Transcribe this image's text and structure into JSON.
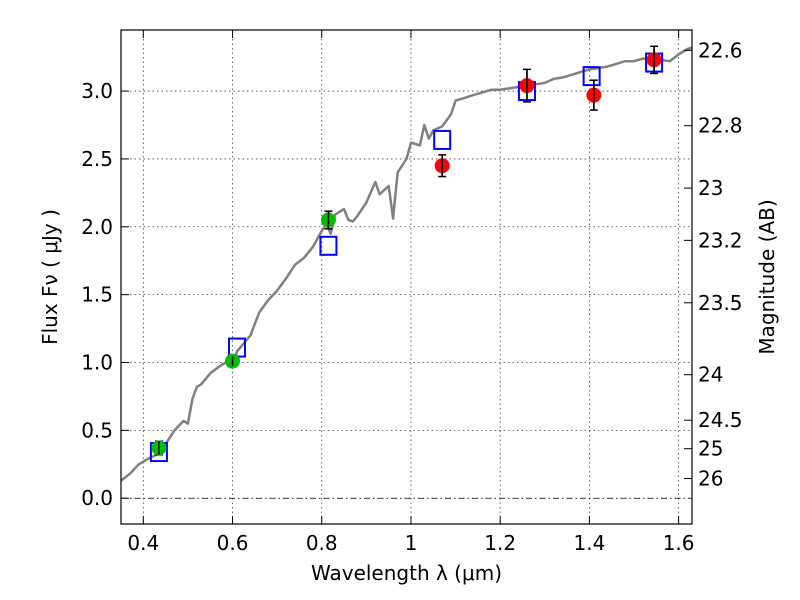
{
  "chart_data": {
    "type": "scatter",
    "xlabel": "Wavelength  λ (μm)",
    "ylabel": "Flux  Fν ( μJy )",
    "ylabel_right": "Magnitude (AB)",
    "xlim": [
      0.35,
      1.63
    ],
    "ylim": [
      -0.19,
      3.45
    ],
    "grid": true,
    "x_ticks": [
      0.4,
      0.6,
      0.8,
      1.0,
      1.2,
      1.4,
      1.6
    ],
    "x_tick_labels": [
      "0.4",
      "0.6",
      "0.8",
      "1",
      "1.2",
      "1.4",
      "1.6"
    ],
    "y_ticks": [
      0.0,
      0.5,
      1.0,
      1.5,
      2.0,
      2.5,
      3.0
    ],
    "y_tick_labels": [
      "0.0",
      "0.5",
      "1.0",
      "1.5",
      "2.0",
      "2.5",
      "3.0"
    ],
    "right_ticks": [
      {
        "label": "22.6",
        "flux": 3.3
      },
      {
        "label": "22.8",
        "flux": 2.745
      },
      {
        "label": "23",
        "flux": 2.285
      },
      {
        "label": "23.2",
        "flux": 1.9
      },
      {
        "label": "23.5",
        "flux": 1.44
      },
      {
        "label": "24",
        "flux": 0.91
      },
      {
        "label": "24.5",
        "flux": 0.575
      },
      {
        "label": "25",
        "flux": 0.365
      },
      {
        "label": "26",
        "flux": 0.145
      }
    ],
    "series": [
      {
        "kind": "line",
        "color": "#808080",
        "x": [
          0.35,
          0.37,
          0.39,
          0.41,
          0.43,
          0.45,
          0.47,
          0.49,
          0.5,
          0.51,
          0.52,
          0.53,
          0.55,
          0.57,
          0.59,
          0.6,
          0.61,
          0.62,
          0.64,
          0.66,
          0.68,
          0.7,
          0.72,
          0.74,
          0.76,
          0.78,
          0.8,
          0.81,
          0.82,
          0.83,
          0.85,
          0.86,
          0.87,
          0.88,
          0.9,
          0.92,
          0.93,
          0.95,
          0.96,
          0.97,
          0.99,
          1.0,
          1.02,
          1.03,
          1.04,
          1.05,
          1.07,
          1.09,
          1.1,
          1.12,
          1.14,
          1.16,
          1.18,
          1.2,
          1.22,
          1.24,
          1.26,
          1.28,
          1.3,
          1.32,
          1.34,
          1.36,
          1.38,
          1.4,
          1.42,
          1.44,
          1.46,
          1.48,
          1.5,
          1.52,
          1.54,
          1.56,
          1.58,
          1.6,
          1.62,
          1.63
        ],
        "y": [
          0.13,
          0.18,
          0.25,
          0.29,
          0.32,
          0.4,
          0.5,
          0.57,
          0.55,
          0.73,
          0.82,
          0.84,
          0.92,
          0.97,
          1.01,
          0.97,
          1.08,
          1.12,
          1.2,
          1.37,
          1.46,
          1.53,
          1.62,
          1.72,
          1.77,
          1.85,
          1.97,
          2.02,
          1.95,
          2.09,
          2.13,
          2.05,
          2.04,
          2.08,
          2.18,
          2.33,
          2.24,
          2.3,
          2.06,
          2.4,
          2.5,
          2.62,
          2.6,
          2.75,
          2.65,
          2.71,
          2.74,
          2.83,
          2.93,
          2.95,
          2.97,
          2.99,
          3.01,
          3.01,
          3.02,
          3.03,
          3.04,
          3.05,
          3.06,
          3.09,
          3.1,
          3.12,
          3.14,
          3.16,
          3.17,
          3.18,
          3.2,
          3.22,
          3.22,
          3.24,
          3.23,
          3.23,
          3.22,
          3.27,
          3.31,
          3.32
        ]
      },
      {
        "kind": "open-square",
        "color": "#0000ff",
        "x": [
          0.435,
          0.61,
          0.815,
          1.07,
          1.26,
          1.405,
          1.545
        ],
        "y": [
          0.34,
          1.11,
          1.86,
          2.64,
          3.0,
          3.11,
          3.21
        ]
      },
      {
        "kind": "filled-circle",
        "color": "#00bb00",
        "x": [
          0.435,
          0.6,
          0.815
        ],
        "y": [
          0.37,
          1.01,
          2.05
        ],
        "err": [
          0.05,
          0.035,
          0.065
        ]
      },
      {
        "kind": "filled-circle",
        "color": "#ff0000",
        "x": [
          1.07,
          1.26,
          1.41,
          1.545
        ],
        "y": [
          2.45,
          3.04,
          2.97,
          3.23
        ],
        "err": [
          0.08,
          0.12,
          0.11,
          0.1
        ]
      }
    ]
  }
}
